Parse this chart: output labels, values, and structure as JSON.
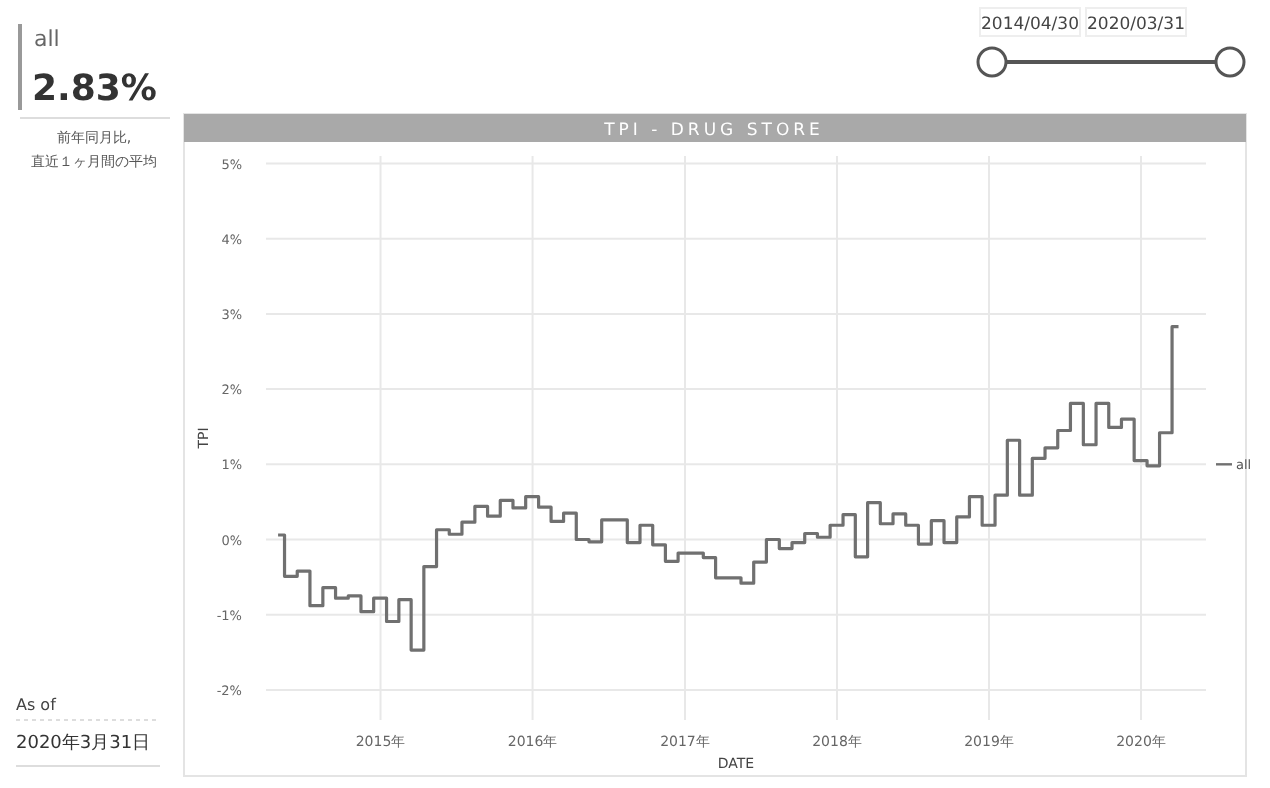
{
  "chart_data": [
    {
      "type": "other",
      "title": "all",
      "annotations": [
        "2.83%",
        "前年同月比,",
        "直近１ヶ月間の平均",
        "As of",
        "2020年3月31日",
        "2014/04/30",
        "2020/03/31"
      ]
    },
    {
      "type": "step",
      "title": "TPI - DRUG STORE",
      "xlabel": "DATE",
      "ylabel": "TPI",
      "x": [
        "2014-04-30",
        "2014-05-31",
        "2014-06-30",
        "2014-07-31",
        "2014-08-31",
        "2014-09-30",
        "2014-10-31",
        "2014-11-30",
        "2014-12-31",
        "2015-01-31",
        "2015-02-28",
        "2015-03-31",
        "2015-04-30",
        "2015-05-31",
        "2015-06-30",
        "2015-07-31",
        "2015-08-31",
        "2015-09-30",
        "2015-10-31",
        "2015-11-30",
        "2015-12-31",
        "2016-01-31",
        "2016-02-29",
        "2016-03-31",
        "2016-04-30",
        "2016-05-31",
        "2016-06-30",
        "2016-07-31",
        "2016-08-31",
        "2016-09-30",
        "2016-10-31",
        "2016-11-30",
        "2016-12-31",
        "2017-01-31",
        "2017-02-28",
        "2017-03-31",
        "2017-04-30",
        "2017-05-31",
        "2017-06-30",
        "2017-07-31",
        "2017-08-31",
        "2017-09-30",
        "2017-10-31",
        "2017-11-30",
        "2017-12-31",
        "2018-01-31",
        "2018-02-28",
        "2018-03-31",
        "2018-04-30",
        "2018-05-31",
        "2018-06-30",
        "2018-07-31",
        "2018-08-31",
        "2018-09-30",
        "2018-10-31",
        "2018-11-30",
        "2018-12-31",
        "2019-01-31",
        "2019-02-28",
        "2019-03-31",
        "2019-04-30",
        "2019-05-31",
        "2019-06-30",
        "2019-07-31",
        "2019-08-31",
        "2019-09-30",
        "2019-10-31",
        "2019-11-30",
        "2019-12-31",
        "2020-01-31",
        "2020-02-29",
        "2020-03-31"
      ],
      "series": [
        {
          "name": "all",
          "color": "#707070",
          "values": [
            0.06,
            -0.49,
            -0.42,
            -0.88,
            -0.64,
            -0.78,
            -0.75,
            -0.96,
            -0.78,
            -1.09,
            -0.8,
            -1.47,
            -0.36,
            0.13,
            0.07,
            0.23,
            0.44,
            0.31,
            0.52,
            0.42,
            0.57,
            0.43,
            0.24,
            0.35,
            0.0,
            -0.03,
            0.26,
            0.26,
            -0.04,
            0.19,
            -0.07,
            -0.29,
            -0.18,
            -0.18,
            -0.24,
            -0.51,
            -0.51,
            -0.58,
            -0.3,
            0.0,
            -0.12,
            -0.04,
            0.08,
            0.03,
            0.19,
            0.33,
            -0.23,
            0.49,
            0.21,
            0.34,
            0.19,
            -0.06,
            0.25,
            -0.04,
            0.3,
            0.57,
            0.19,
            0.59,
            1.32,
            0.59,
            1.08,
            1.22,
            1.45,
            1.81,
            1.26,
            1.81,
            1.49,
            1.6,
            1.05,
            0.98,
            1.42,
            2.83
          ]
        }
      ],
      "xlim": [
        "2014-04-01",
        "2020-06-05"
      ],
      "xticks": [
        {
          "value": "2015-01-01",
          "label": "2015年"
        },
        {
          "value": "2016-01-01",
          "label": "2016年"
        },
        {
          "value": "2017-01-01",
          "label": "2017年"
        },
        {
          "value": "2018-01-01",
          "label": "2018年"
        },
        {
          "value": "2019-01-01",
          "label": "2019年"
        },
        {
          "value": "2020-01-01",
          "label": "2020年"
        }
      ],
      "ylim": [
        -2.4,
        5.1
      ],
      "yticks": [
        {
          "value": -2,
          "label": "-2%"
        },
        {
          "value": -1,
          "label": "-1%"
        },
        {
          "value": 0,
          "label": "0%"
        },
        {
          "value": 1,
          "label": "1%"
        },
        {
          "value": 2,
          "label": "2%"
        },
        {
          "value": 3,
          "label": "3%"
        },
        {
          "value": 4,
          "label": "4%"
        },
        {
          "value": 5,
          "label": "5%"
        }
      ],
      "grid": true,
      "legend": "right"
    }
  ]
}
